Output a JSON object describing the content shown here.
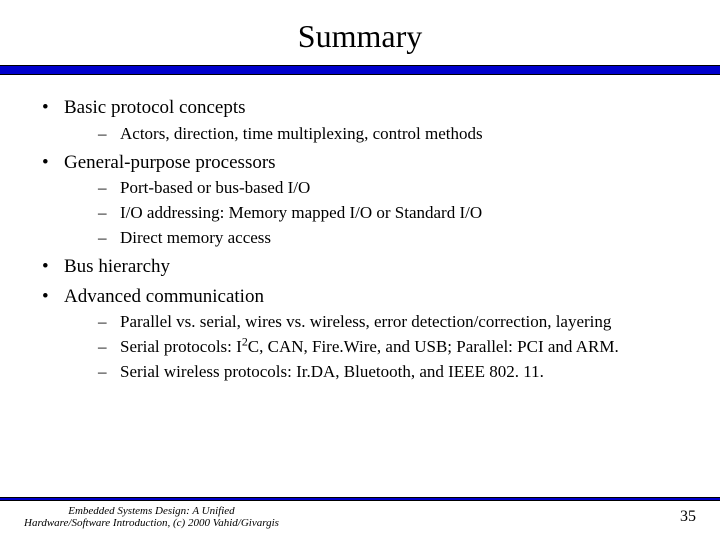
{
  "title": "Summary",
  "rule_color": "#0000cc",
  "bullets": [
    {
      "text": "Basic protocol concepts",
      "sub": [
        "Actors, direction, time multiplexing, control methods"
      ]
    },
    {
      "text": "General-purpose processors",
      "sub": [
        "Port-based or bus-based I/O",
        "I/O addressing: Memory mapped I/O or Standard I/O",
        "Direct memory access"
      ]
    },
    {
      "text": "Bus hierarchy",
      "sub": []
    },
    {
      "text": "Advanced communication",
      "sub": [
        "Parallel vs. serial, wires vs. wireless, error detection/correction, layering",
        "Serial protocols: I2C, CAN, Fire.Wire, and USB; Parallel: PCI and ARM.",
        "Serial wireless protocols: Ir.DA, Bluetooth, and IEEE 802. 11."
      ]
    }
  ],
  "footer": {
    "note_line1": "Embedded Systems Design: A Unified",
    "note_line2": "Hardware/Software Introduction, (c) 2000 Vahid/Givargis",
    "page": "35"
  }
}
